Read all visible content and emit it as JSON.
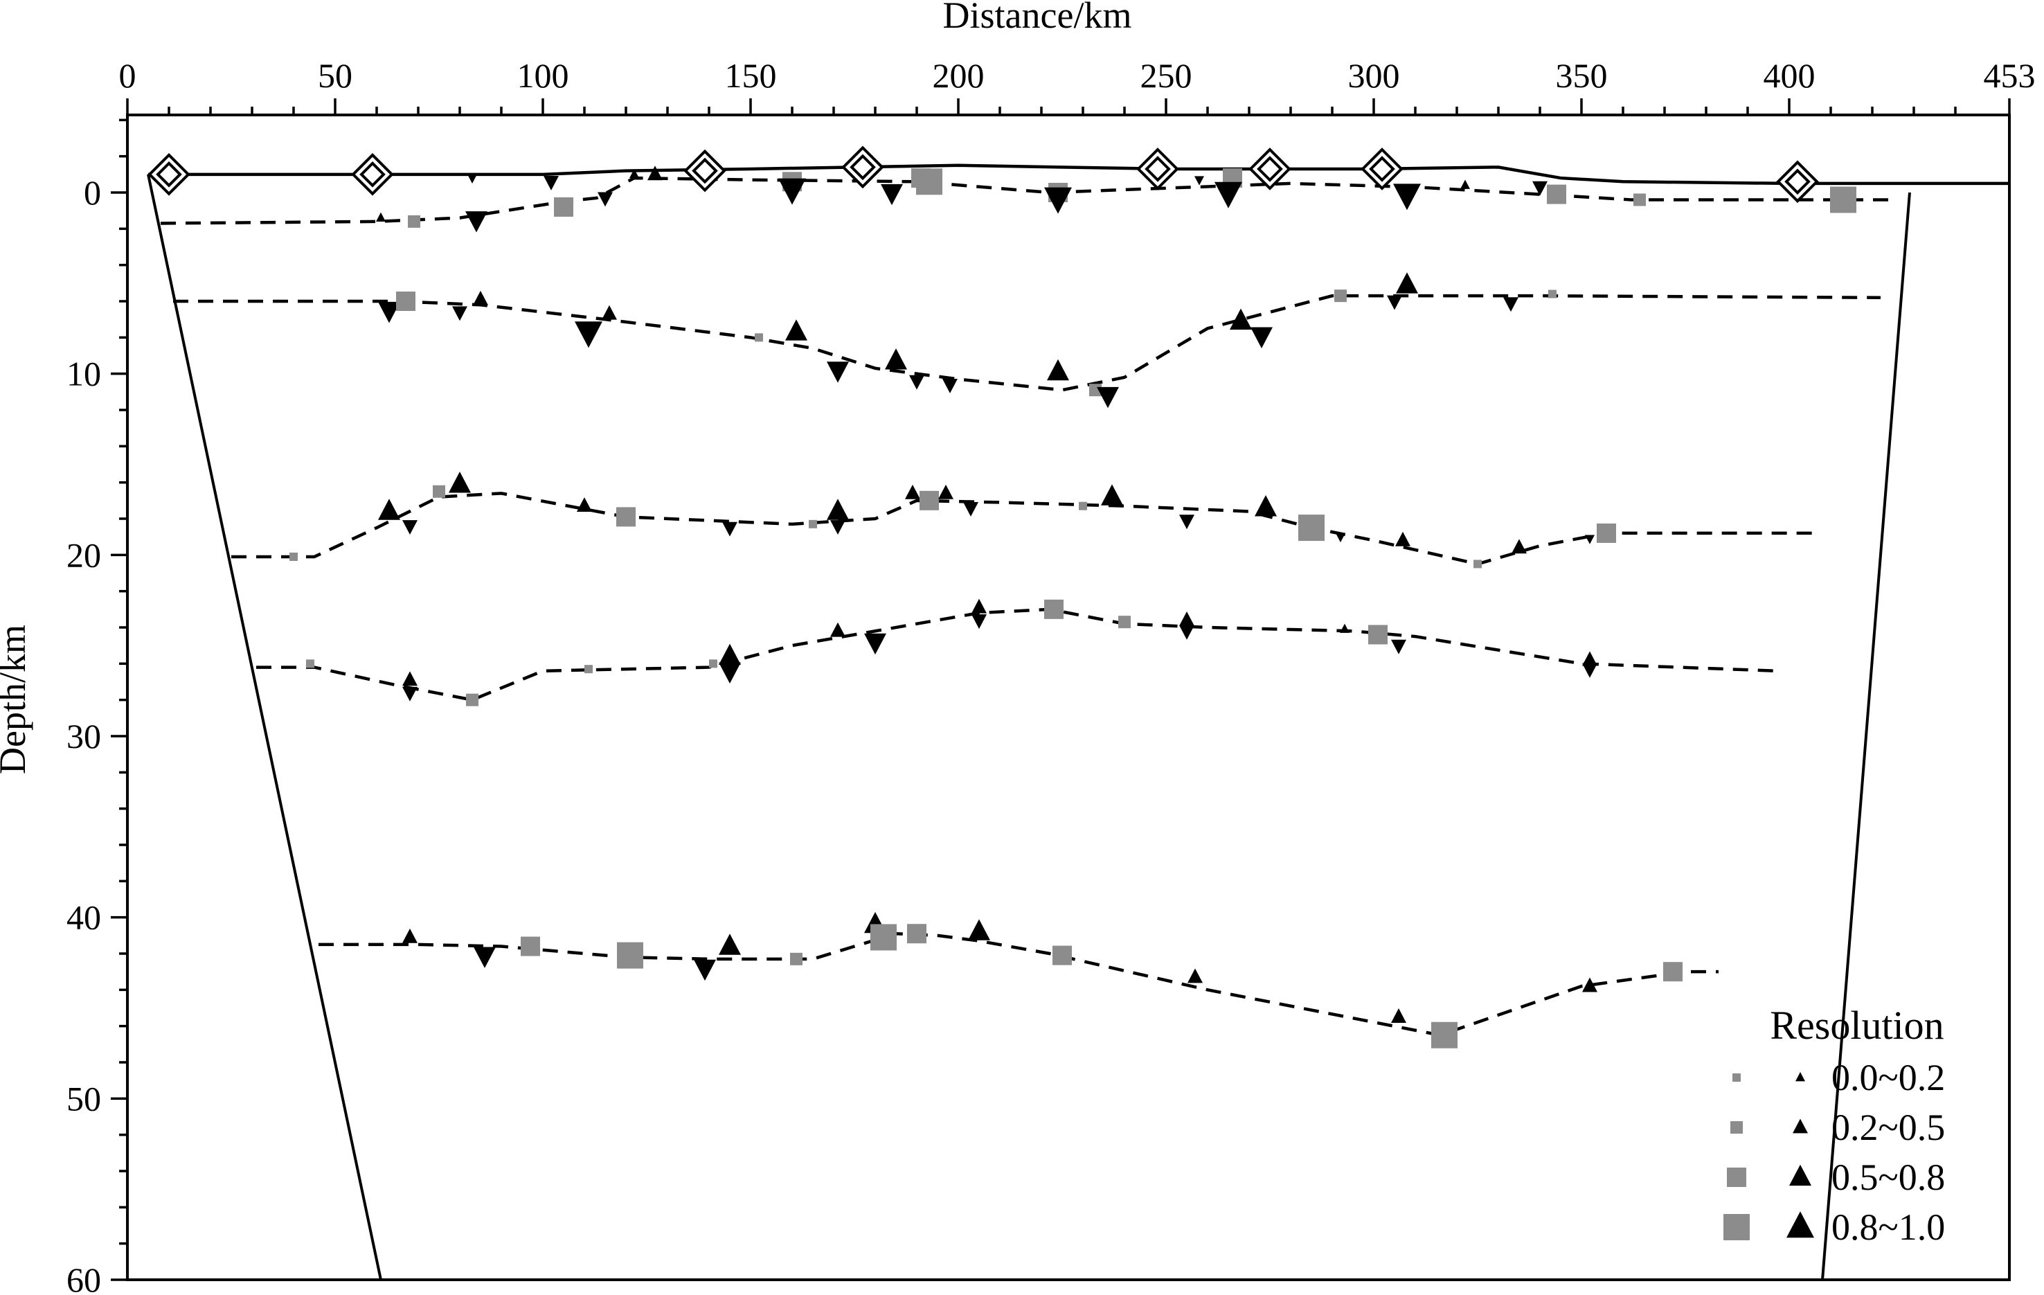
{
  "chart_data": {
    "type": "scatter",
    "title": "",
    "xlabel": "Distance/km",
    "ylabel": "Depth/km",
    "xlim": [
      0,
      453
    ],
    "ylim": [
      60,
      -4
    ],
    "x_ticks": [
      0,
      50,
      100,
      150,
      200,
      250,
      300,
      350,
      400,
      453
    ],
    "y_ticks": [
      0,
      10,
      20,
      30,
      40,
      50,
      60
    ],
    "grid": false,
    "legend_position": "bottom-right",
    "colors": {
      "square": "#8c8c8c",
      "triangle": "#000000"
    },
    "legend": {
      "title": "Resolution",
      "entries": [
        {
          "label": "0.0~0.2",
          "size_level": 1
        },
        {
          "label": "0.2~0.5",
          "size_level": 2
        },
        {
          "label": "0.5~0.8",
          "size_level": 3
        },
        {
          "label": "0.8~1.0",
          "size_level": 4
        }
      ]
    },
    "model_boundary": {
      "left": [
        [
          5,
          -1
        ],
        [
          61,
          60
        ]
      ],
      "right": [
        [
          429,
          0
        ],
        [
          408,
          60
        ]
      ]
    },
    "topography": [
      [
        5,
        -1
      ],
      [
        50,
        -1
      ],
      [
        100,
        -1
      ],
      [
        120,
        -1.2
      ],
      [
        150,
        -1.3
      ],
      [
        200,
        -1.5
      ],
      [
        250,
        -1.3
      ],
      [
        300,
        -1.3
      ],
      [
        330,
        -1.4
      ],
      [
        345,
        -0.8
      ],
      [
        360,
        -0.6
      ],
      [
        400,
        -0.5
      ],
      [
        453,
        -0.5
      ]
    ],
    "stations": [
      [
        10,
        -1
      ],
      [
        59,
        -1
      ],
      [
        139,
        -1.2
      ],
      [
        177,
        -1.4
      ],
      [
        248,
        -1.3
      ],
      [
        275,
        -1.3
      ],
      [
        302,
        -1.3
      ],
      [
        402,
        -0.6
      ]
    ],
    "interfaces": [
      {
        "points": [
          [
            8,
            1.7
          ],
          [
            60,
            1.6
          ],
          [
            80,
            1.4
          ],
          [
            105,
            0.5
          ],
          [
            113,
            0.3
          ],
          [
            122,
            -0.8
          ],
          [
            150,
            -0.7
          ],
          [
            190,
            -0.6
          ],
          [
            222,
            0
          ],
          [
            280,
            -0.5
          ],
          [
            310,
            -0.3
          ],
          [
            340,
            0.1
          ],
          [
            362,
            0.4
          ],
          [
            410,
            0.4
          ],
          [
            426,
            0.4
          ]
        ]
      },
      {
        "points": [
          [
            11,
            6
          ],
          [
            65,
            6
          ],
          [
            85,
            6.2
          ],
          [
            115,
            7
          ],
          [
            150,
            8
          ],
          [
            165,
            8.6
          ],
          [
            180,
            9.7
          ],
          [
            200,
            10.3
          ],
          [
            225,
            10.9
          ],
          [
            240,
            10.2
          ],
          [
            260,
            7.5
          ],
          [
            290,
            5.7
          ],
          [
            340,
            5.7
          ],
          [
            422,
            5.8
          ]
        ]
      },
      {
        "points": [
          [
            25,
            20.1
          ],
          [
            45,
            20.1
          ],
          [
            60,
            18.5
          ],
          [
            75,
            16.8
          ],
          [
            90,
            16.6
          ],
          [
            120,
            17.9
          ],
          [
            160,
            18.3
          ],
          [
            180,
            18.0
          ],
          [
            190,
            17.0
          ],
          [
            210,
            17.1
          ],
          [
            240,
            17.3
          ],
          [
            270,
            17.6
          ],
          [
            285,
            18.5
          ],
          [
            300,
            19.2
          ],
          [
            325,
            20.5
          ],
          [
            340,
            19.5
          ],
          [
            356,
            18.8
          ],
          [
            407,
            18.8
          ]
        ]
      },
      {
        "points": [
          [
            31,
            26.2
          ],
          [
            45,
            26.2
          ],
          [
            65,
            27.2
          ],
          [
            83,
            28
          ],
          [
            100,
            26.4
          ],
          [
            140,
            26.2
          ],
          [
            160,
            25
          ],
          [
            180,
            24.2
          ],
          [
            205,
            23.2
          ],
          [
            222,
            23
          ],
          [
            240,
            23.8
          ],
          [
            260,
            24
          ],
          [
            295,
            24.2
          ],
          [
            310,
            24.5
          ],
          [
            350,
            26
          ],
          [
            397,
            26.4
          ]
        ]
      },
      {
        "points": [
          [
            46,
            41.5
          ],
          [
            70,
            41.5
          ],
          [
            90,
            41.6
          ],
          [
            120,
            42.2
          ],
          [
            140,
            42.3
          ],
          [
            165,
            42.3
          ],
          [
            185,
            40.9
          ],
          [
            195,
            41.0
          ],
          [
            205,
            41.3
          ],
          [
            222,
            42.0
          ],
          [
            260,
            44
          ],
          [
            316,
            46.5
          ],
          [
            350,
            43.8
          ],
          [
            375,
            43
          ],
          [
            383,
            43
          ]
        ]
      }
    ],
    "markers": [
      {
        "shape": "triangle-down",
        "x": 83,
        "y": -0.8,
        "size_level": 1
      },
      {
        "shape": "triangle-down",
        "x": 102,
        "y": -0.6,
        "size_level": 2
      },
      {
        "shape": "triangle-up",
        "x": 122,
        "y": -1.0,
        "size_level": 1
      },
      {
        "shape": "triangle-up",
        "x": 127,
        "y": -1.0,
        "size_level": 2
      },
      {
        "shape": "square",
        "x": 160,
        "y": -0.6,
        "size_level": 3
      },
      {
        "shape": "triangle-down",
        "x": 160,
        "y": -0.2,
        "size_level": 4
      },
      {
        "shape": "square",
        "x": 191,
        "y": -0.8,
        "size_level": 3
      },
      {
        "shape": "square",
        "x": 193,
        "y": -0.6,
        "size_level": 4
      },
      {
        "shape": "triangle-down",
        "x": 184,
        "y": 0,
        "size_level": 3
      },
      {
        "shape": "square",
        "x": 224,
        "y": 0,
        "size_level": 3
      },
      {
        "shape": "triangle-down",
        "x": 224,
        "y": 0.3,
        "size_level": 4
      },
      {
        "shape": "triangle-down",
        "x": 258,
        "y": -0.7,
        "size_level": 1
      },
      {
        "shape": "square",
        "x": 266,
        "y": -0.8,
        "size_level": 3
      },
      {
        "shape": "triangle-down",
        "x": 265,
        "y": 0,
        "size_level": 4
      },
      {
        "shape": "triangle-down",
        "x": 308,
        "y": 0.1,
        "size_level": 4
      },
      {
        "shape": "triangle-up",
        "x": 322,
        "y": -0.4,
        "size_level": 1
      },
      {
        "shape": "triangle-down",
        "x": 340,
        "y": -0.3,
        "size_level": 2
      },
      {
        "shape": "square",
        "x": 344,
        "y": 0.1,
        "size_level": 3
      },
      {
        "shape": "square",
        "x": 364,
        "y": 0.4,
        "size_level": 2
      },
      {
        "shape": "square",
        "x": 413,
        "y": 0.4,
        "size_level": 4
      },
      {
        "shape": "triangle-up",
        "x": 61,
        "y": 1.4,
        "size_level": 1
      },
      {
        "shape": "square",
        "x": 69,
        "y": 1.6,
        "size_level": 2
      },
      {
        "shape": "triangle-down",
        "x": 84,
        "y": 1.5,
        "size_level": 3
      },
      {
        "shape": "square",
        "x": 105,
        "y": 0.8,
        "size_level": 3
      },
      {
        "shape": "triangle-down",
        "x": 115,
        "y": 0.3,
        "size_level": 2
      },
      {
        "shape": "triangle-down",
        "x": 63,
        "y": 6.5,
        "size_level": 3
      },
      {
        "shape": "square",
        "x": 67,
        "y": 6.0,
        "size_level": 3
      },
      {
        "shape": "triangle-down",
        "x": 80,
        "y": 6.6,
        "size_level": 2
      },
      {
        "shape": "triangle-up",
        "x": 85,
        "y": 5.9,
        "size_level": 2
      },
      {
        "shape": "triangle-down",
        "x": 111,
        "y": 7.7,
        "size_level": 4
      },
      {
        "shape": "triangle-up",
        "x": 116,
        "y": 6.7,
        "size_level": 2
      },
      {
        "shape": "square",
        "x": 152,
        "y": 8.0,
        "size_level": 1
      },
      {
        "shape": "triangle-up",
        "x": 161,
        "y": 7.7,
        "size_level": 3
      },
      {
        "shape": "triangle-down",
        "x": 171,
        "y": 9.8,
        "size_level": 3
      },
      {
        "shape": "triangle-up",
        "x": 185,
        "y": 9.3,
        "size_level": 3
      },
      {
        "shape": "triangle-down",
        "x": 190,
        "y": 10.4,
        "size_level": 2
      },
      {
        "shape": "triangle-down",
        "x": 198,
        "y": 10.6,
        "size_level": 2
      },
      {
        "shape": "triangle-up",
        "x": 224,
        "y": 9.9,
        "size_level": 3
      },
      {
        "shape": "square",
        "x": 233,
        "y": 10.9,
        "size_level": 2
      },
      {
        "shape": "triangle-down",
        "x": 236,
        "y": 11.2,
        "size_level": 3
      },
      {
        "shape": "triangle-up",
        "x": 268,
        "y": 7.1,
        "size_level": 3
      },
      {
        "shape": "triangle-down",
        "x": 273,
        "y": 7.9,
        "size_level": 3
      },
      {
        "shape": "square",
        "x": 292,
        "y": 5.7,
        "size_level": 2
      },
      {
        "shape": "triangle-down",
        "x": 305,
        "y": 6.0,
        "size_level": 2
      },
      {
        "shape": "triangle-up",
        "x": 308,
        "y": 5.1,
        "size_level": 3
      },
      {
        "shape": "triangle-down",
        "x": 333,
        "y": 6.1,
        "size_level": 2
      },
      {
        "shape": "square",
        "x": 343,
        "y": 5.6,
        "size_level": 1
      },
      {
        "shape": "square",
        "x": 40,
        "y": 20.1,
        "size_level": 1
      },
      {
        "shape": "triangle-up",
        "x": 63,
        "y": 17.6,
        "size_level": 3
      },
      {
        "shape": "triangle-down",
        "x": 68,
        "y": 18.4,
        "size_level": 2
      },
      {
        "shape": "square",
        "x": 75,
        "y": 16.5,
        "size_level": 2
      },
      {
        "shape": "triangle-up",
        "x": 80,
        "y": 16.1,
        "size_level": 3
      },
      {
        "shape": "triangle-up",
        "x": 110,
        "y": 17.3,
        "size_level": 2
      },
      {
        "shape": "square",
        "x": 120,
        "y": 17.9,
        "size_level": 3
      },
      {
        "shape": "triangle-down",
        "x": 145,
        "y": 18.5,
        "size_level": 2
      },
      {
        "shape": "square",
        "x": 165,
        "y": 18.3,
        "size_level": 1
      },
      {
        "shape": "triangle-up",
        "x": 171,
        "y": 17.6,
        "size_level": 3
      },
      {
        "shape": "triangle-down",
        "x": 171,
        "y": 18.4,
        "size_level": 2
      },
      {
        "shape": "triangle-up",
        "x": 189,
        "y": 16.6,
        "size_level": 2
      },
      {
        "shape": "square",
        "x": 193,
        "y": 17.0,
        "size_level": 3
      },
      {
        "shape": "triangle-up",
        "x": 197,
        "y": 16.6,
        "size_level": 2
      },
      {
        "shape": "triangle-down",
        "x": 203,
        "y": 17.4,
        "size_level": 2
      },
      {
        "shape": "square",
        "x": 230,
        "y": 17.3,
        "size_level": 1
      },
      {
        "shape": "triangle-up",
        "x": 237,
        "y": 16.8,
        "size_level": 3
      },
      {
        "shape": "triangle-down",
        "x": 255,
        "y": 18.1,
        "size_level": 2
      },
      {
        "shape": "triangle-up",
        "x": 274,
        "y": 17.4,
        "size_level": 3
      },
      {
        "shape": "square",
        "x": 285,
        "y": 18.5,
        "size_level": 4
      },
      {
        "shape": "triangle-down",
        "x": 292,
        "y": 19.0,
        "size_level": 1
      },
      {
        "shape": "triangle-up",
        "x": 307,
        "y": 19.2,
        "size_level": 2
      },
      {
        "shape": "square",
        "x": 325,
        "y": 20.5,
        "size_level": 1
      },
      {
        "shape": "triangle-up",
        "x": 335,
        "y": 19.6,
        "size_level": 2
      },
      {
        "shape": "triangle-down",
        "x": 352,
        "y": 19.1,
        "size_level": 1
      },
      {
        "shape": "square",
        "x": 356,
        "y": 18.8,
        "size_level": 3
      },
      {
        "shape": "square",
        "x": 44,
        "y": 26.0,
        "size_level": 1
      },
      {
        "shape": "triangle-up",
        "x": 68,
        "y": 26.9,
        "size_level": 2
      },
      {
        "shape": "triangle-down",
        "x": 68,
        "y": 27.6,
        "size_level": 2
      },
      {
        "shape": "square",
        "x": 83,
        "y": 28.0,
        "size_level": 2
      },
      {
        "shape": "square",
        "x": 111,
        "y": 26.3,
        "size_level": 1
      },
      {
        "shape": "square",
        "x": 141,
        "y": 26.0,
        "size_level": 1
      },
      {
        "shape": "triangle-up",
        "x": 145,
        "y": 25.6,
        "size_level": 3
      },
      {
        "shape": "triangle-down",
        "x": 145,
        "y": 26.4,
        "size_level": 3
      },
      {
        "shape": "triangle-up",
        "x": 171,
        "y": 24.2,
        "size_level": 2
      },
      {
        "shape": "triangle-down",
        "x": 180,
        "y": 24.8,
        "size_level": 3
      },
      {
        "shape": "triangle-up",
        "x": 205,
        "y": 22.9,
        "size_level": 2
      },
      {
        "shape": "triangle-down",
        "x": 205,
        "y": 23.6,
        "size_level": 2
      },
      {
        "shape": "square",
        "x": 223,
        "y": 23.0,
        "size_level": 3
      },
      {
        "shape": "square",
        "x": 240,
        "y": 23.7,
        "size_level": 2
      },
      {
        "shape": "triangle-up",
        "x": 255,
        "y": 23.6,
        "size_level": 2
      },
      {
        "shape": "triangle-down",
        "x": 255,
        "y": 24.2,
        "size_level": 2
      },
      {
        "shape": "triangle-up",
        "x": 293,
        "y": 24.1,
        "size_level": 1
      },
      {
        "shape": "square",
        "x": 301,
        "y": 24.4,
        "size_level": 3
      },
      {
        "shape": "triangle-down",
        "x": 306,
        "y": 25.0,
        "size_level": 2
      },
      {
        "shape": "triangle-up",
        "x": 352,
        "y": 25.8,
        "size_level": 2
      },
      {
        "shape": "triangle-down",
        "x": 352,
        "y": 26.3,
        "size_level": 2
      },
      {
        "shape": "triangle-up",
        "x": 68,
        "y": 41.1,
        "size_level": 2
      },
      {
        "shape": "triangle-down",
        "x": 86,
        "y": 42.1,
        "size_level": 3
      },
      {
        "shape": "square",
        "x": 97,
        "y": 41.6,
        "size_level": 3
      },
      {
        "shape": "square",
        "x": 121,
        "y": 42.1,
        "size_level": 4
      },
      {
        "shape": "triangle-down",
        "x": 139,
        "y": 42.8,
        "size_level": 3
      },
      {
        "shape": "triangle-up",
        "x": 145,
        "y": 41.6,
        "size_level": 3
      },
      {
        "shape": "square",
        "x": 161,
        "y": 42.3,
        "size_level": 2
      },
      {
        "shape": "triangle-up",
        "x": 180,
        "y": 40.4,
        "size_level": 3
      },
      {
        "shape": "square",
        "x": 182,
        "y": 41.1,
        "size_level": 4
      },
      {
        "shape": "square",
        "x": 190,
        "y": 40.9,
        "size_level": 3
      },
      {
        "shape": "triangle-up",
        "x": 205,
        "y": 40.8,
        "size_level": 3
      },
      {
        "shape": "square",
        "x": 225,
        "y": 42.1,
        "size_level": 3
      },
      {
        "shape": "triangle-up",
        "x": 257,
        "y": 43.3,
        "size_level": 2
      },
      {
        "shape": "triangle-up",
        "x": 306,
        "y": 45.5,
        "size_level": 2
      },
      {
        "shape": "square",
        "x": 317,
        "y": 46.5,
        "size_level": 4
      },
      {
        "shape": "triangle-up",
        "x": 352,
        "y": 43.8,
        "size_level": 2
      },
      {
        "shape": "square",
        "x": 372,
        "y": 43.0,
        "size_level": 3
      }
    ]
  }
}
